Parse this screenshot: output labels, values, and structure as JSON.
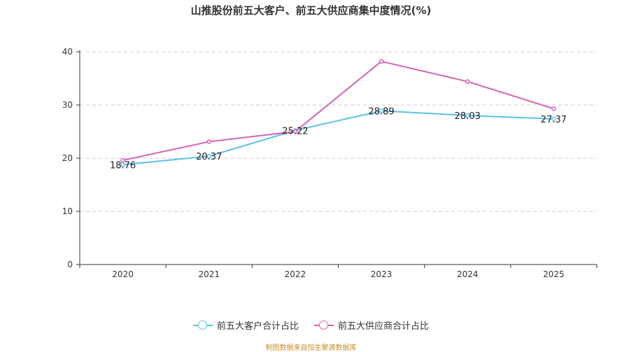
{
  "chart_data": {
    "type": "line",
    "title": "山推股份前五大客户、前五大供应商集中度情况(%)",
    "categories": [
      "2020",
      "2021",
      "2022",
      "2023",
      "2024",
      "2025"
    ],
    "ylim": [
      0,
      40
    ],
    "yticks": [
      0,
      10,
      20,
      30,
      40
    ],
    "xlabel": "",
    "ylabel": "",
    "grid": "horizontal dashed",
    "legend_position": "bottom-center",
    "series": [
      {
        "name": "前五大客户合计占比",
        "color": "#5bc0eb",
        "values": [
          18.76,
          20.37,
          25.22,
          28.89,
          28.03,
          27.37
        ],
        "labels": [
          "18.76",
          "20.37",
          "25.22",
          "28.89",
          "28.03",
          "27.37"
        ]
      },
      {
        "name": "前五大供应商合计占比",
        "color": "#d562b0",
        "values": [
          19.6,
          23.1,
          25.0,
          38.2,
          34.4,
          29.3
        ]
      }
    ]
  },
  "source": "制图数据来自恒生聚源数据库"
}
